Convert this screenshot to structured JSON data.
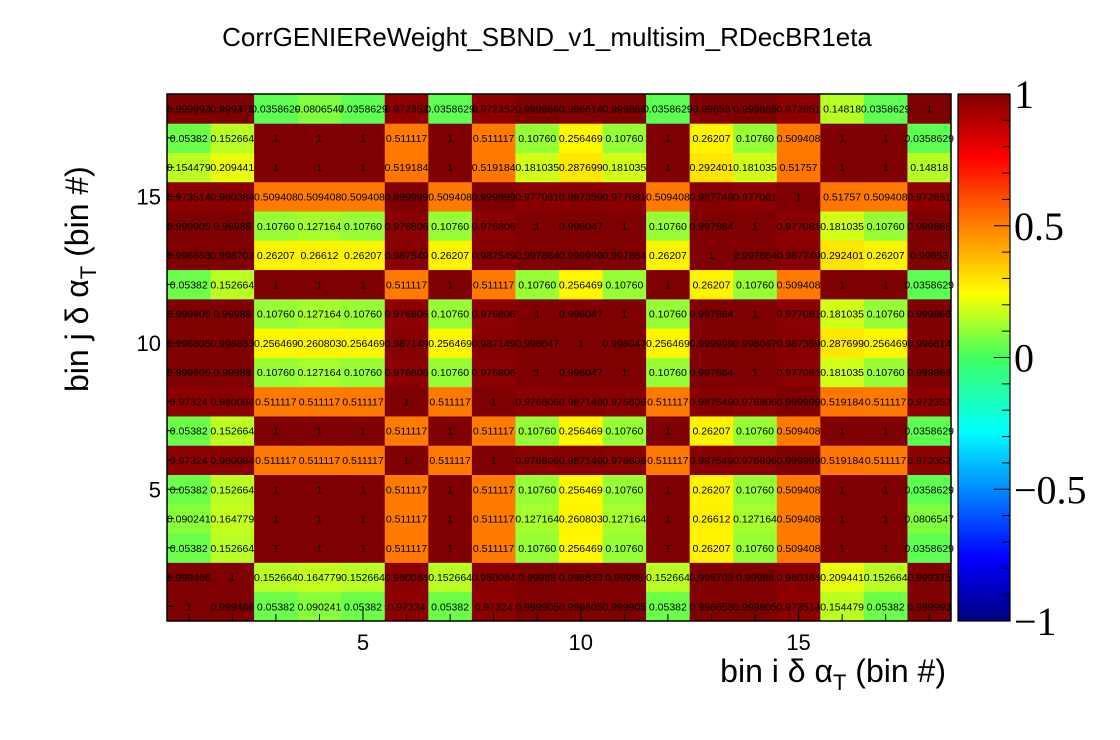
{
  "chart_data": {
    "type": "heatmap",
    "title": "CorrGENIEReWeight_SBND_v1_multisim_RDecBR1eta",
    "xlabel": "bin i δ α_T (bin #)",
    "ylabel": "bin j δ α_T (bin #)",
    "xlabel_text": [
      "bin i δ α",
      "T",
      " (bin #)"
    ],
    "ylabel_text": [
      "bin j δ α",
      "T",
      " (bin #)"
    ],
    "x_bins": [
      1,
      2,
      3,
      4,
      5,
      6,
      7,
      8,
      9,
      10,
      11,
      12,
      13,
      14,
      15,
      16,
      17,
      18
    ],
    "y_bins": [
      1,
      2,
      3,
      4,
      5,
      6,
      7,
      8,
      9,
      10,
      11,
      12,
      13,
      14,
      15,
      16,
      17,
      18
    ],
    "xlim": [
      0.5,
      18.5
    ],
    "ylim": [
      0.5,
      18.5
    ],
    "x_ticks": [
      "5",
      "10",
      "15"
    ],
    "y_ticks": [
      "5",
      "10",
      "15"
    ],
    "zlim": [
      -1,
      1
    ],
    "z_ticks": [
      "−1",
      "−0.5",
      "0",
      "0.5",
      "1"
    ],
    "cell_labels": [
      [
        "1",
        "0.999466",
        "0.05382",
        "0.090241",
        "0.05382",
        "0.97324",
        "0.05382",
        "0.97324",
        "0.999905",
        "0.996805",
        "0.999905",
        "0.05382",
        "0.996653",
        "0.999905",
        "0.973514",
        "0.154479",
        "0.05382",
        "0.999993"
      ],
      [
        "0.999466",
        "1",
        "0.152664",
        "0.164779",
        "0.152664",
        "0.980084",
        "0.152664",
        "0.980084",
        "0.99988",
        "0.998833",
        "0.99988",
        "0.152664",
        "0.998703",
        "0.99988",
        "0.980384",
        "0.209441",
        "0.152664",
        "0.999375"
      ],
      [
        "0.05382",
        "0.152664",
        "1",
        "1",
        "1",
        "0.511117",
        "1",
        "0.511117",
        "0.10760",
        "0.256469",
        "0.10760",
        "1",
        "0.26207",
        "0.10760",
        "0.509408",
        "1",
        "1",
        "0.0358629"
      ],
      [
        "0.090241",
        "0.164779",
        "1",
        "1",
        "1",
        "0.511117",
        "1",
        "0.511117",
        "0.127164",
        "0.260803",
        "0.127164",
        "1",
        "0.26612",
        "0.127164",
        "0.509408",
        "1",
        "1",
        "0.0806547"
      ],
      [
        "0.05382",
        "0.152664",
        "1",
        "1",
        "1",
        "0.511117",
        "1",
        "0.511117",
        "0.10760",
        "0.256469",
        "0.10760",
        "1",
        "0.26207",
        "0.10760",
        "0.509408",
        "1",
        "1",
        "0.0358629"
      ],
      [
        "0.97324",
        "0.980084",
        "0.511117",
        "0.511117",
        "0.511117",
        "1",
        "0.511117",
        "1",
        "0.976806",
        "0.987149",
        "0.976806",
        "0.511117",
        "0.987549",
        "0.976806",
        "0.999999",
        "0.519184",
        "0.511117",
        "0.972352"
      ],
      [
        "0.05382",
        "0.152664",
        "1",
        "1",
        "1",
        "0.511117",
        "1",
        "0.511117",
        "0.10760",
        "0.256469",
        "0.10760",
        "1",
        "0.26207",
        "0.10760",
        "0.509408",
        "1",
        "1",
        "0.0358629"
      ],
      [
        "0.97324",
        "0.980084",
        "0.511117",
        "0.511117",
        "0.511117",
        "1",
        "0.511117",
        "1",
        "0.976806",
        "0.987149",
        "0.976806",
        "0.511117",
        "0.987549",
        "0.976806",
        "0.999999",
        "0.519184",
        "0.511117",
        "0.972352"
      ],
      [
        "0.999905",
        "0.99988",
        "0.10760",
        "0.127164",
        "0.10760",
        "0.976806",
        "0.10760",
        "0.976806",
        "1",
        "0.998047",
        "1",
        "0.10760",
        "0.997864",
        "1",
        "0.977081",
        "0.181035",
        "0.10760",
        "0.999866"
      ],
      [
        "0.996805",
        "0.998833",
        "0.256469",
        "0.260803",
        "0.256469",
        "0.987149",
        "0.256469",
        "0.987149",
        "0.998047",
        "1",
        "0.998047",
        "0.256469",
        "0.999999",
        "0.998047",
        "0.987359",
        "0.287699",
        "0.256469",
        "0.996614"
      ],
      [
        "0.999905",
        "0.99988",
        "0.10760",
        "0.127164",
        "0.10760",
        "0.976806",
        "0.10760",
        "0.976806",
        "1",
        "0.998047",
        "1",
        "0.10760",
        "0.997864",
        "1",
        "0.977081",
        "0.181035",
        "0.10760",
        "0.999866"
      ],
      [
        "0.05382",
        "0.152664",
        "1",
        "1",
        "1",
        "0.511117",
        "1",
        "0.511117",
        "0.10760",
        "0.256469",
        "0.10760",
        "1",
        "0.26207",
        "0.10760",
        "0.509408",
        "1",
        "1",
        "0.0358629"
      ],
      [
        "0.996653",
        "0.998703",
        "0.26207",
        "0.26612",
        "0.26207",
        "0.987549",
        "0.26207",
        "0.987549",
        "0.997864",
        "0.999999",
        "0.997864",
        "0.26207",
        "1",
        "0.997864",
        "0.987749",
        "0.292401",
        "0.26207",
        "0.99653"
      ],
      [
        "0.999905",
        "0.99988",
        "0.10760",
        "0.127164",
        "0.10760",
        "0.976806",
        "0.10760",
        "0.976806",
        "1",
        "0.998047",
        "1",
        "0.10760",
        "0.997864",
        "1",
        "0.977081",
        "0.181035",
        "0.10760",
        "0.999866"
      ],
      [
        "0.973514",
        "0.980384",
        "0.509408",
        "0.509408",
        "0.509408",
        "0.999999",
        "0.509408",
        "0.999999",
        "0.977081",
        "0.987359",
        "0.977081",
        "0.509408",
        "0.987749",
        "0.977081",
        "1",
        "0.51757",
        "0.509408",
        "0.972651"
      ],
      [
        "0.154479",
        "0.209441",
        "1",
        "1",
        "1",
        "0.519184",
        "1",
        "0.519184",
        "0.181035",
        "0.287699",
        "0.181035",
        "1",
        "0.292401",
        "0.181035",
        "0.51757",
        "1",
        "1",
        "0.14818"
      ],
      [
        "0.05382",
        "0.152664",
        "1",
        "1",
        "1",
        "0.511117",
        "1",
        "0.511117",
        "0.10760",
        "0.256469",
        "0.10760",
        "1",
        "0.26207",
        "0.10760",
        "0.509408",
        "1",
        "1",
        "0.0358629"
      ],
      [
        "0.999993",
        "0.999375",
        "0.0358629",
        "0.0806547",
        "0.0358629",
        "0.972352",
        "0.0358629",
        "0.972352",
        "0.999866",
        "0.996614",
        "0.999866",
        "0.0358629",
        "0.99653",
        "0.999866",
        "0.972651",
        "0.14818",
        "0.0358629",
        "1"
      ]
    ]
  }
}
